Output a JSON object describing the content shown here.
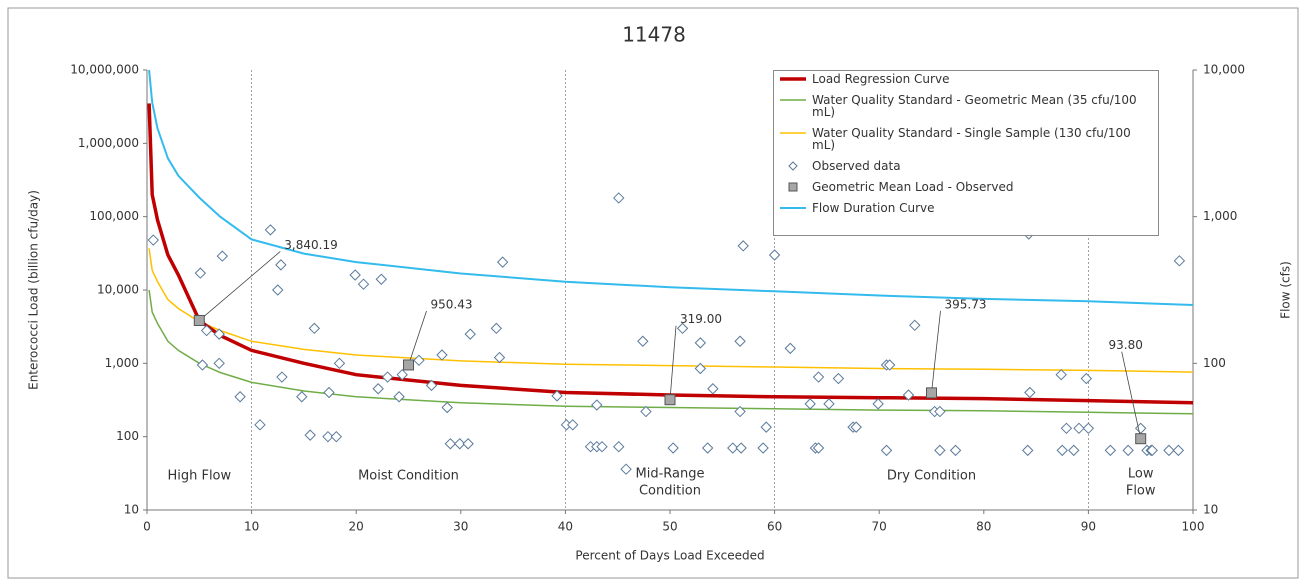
{
  "chart_data": {
    "type": "line",
    "title": "11478",
    "x_label": "Percent of Days Load Exceeded",
    "y_label": "Enterococci Load (billion cfu/day)",
    "y2_label": "Flow (cfs)",
    "xlim": [
      0,
      100
    ],
    "xticks": [
      0,
      10,
      20,
      30,
      40,
      50,
      60,
      70,
      80,
      90,
      100
    ],
    "ylim": [
      10,
      10000000
    ],
    "yticks": [
      10,
      100,
      {
        "value": 1000,
        "label": "1,000"
      },
      {
        "value": 10000,
        "label": "10,000"
      },
      {
        "value": 100000,
        "label": "100,000"
      },
      {
        "value": 1000000,
        "label": "1,000,000"
      },
      {
        "value": 10000000,
        "label": "10,000,000"
      }
    ],
    "y2lim": [
      10,
      10000
    ],
    "y2ticks": [
      10,
      100,
      {
        "value": 1000,
        "label": "1,000"
      },
      {
        "value": 10000,
        "label": "10,000"
      }
    ],
    "log_scale": true,
    "zone_boundaries": [
      10,
      40,
      60,
      90
    ],
    "zones": [
      [
        "High Flow"
      ],
      [
        "Moist Condition"
      ],
      [
        "Mid-Range",
        "Condition"
      ],
      [
        "Dry Condition"
      ],
      [
        "Low",
        "Flow"
      ]
    ],
    "legend": "upper right",
    "series": [
      {
        "name": "Load Regression Curve",
        "kind": "line",
        "color": "#c00000",
        "width": 3.5,
        "x": [
          0.2,
          0.5,
          1,
          2,
          3,
          5,
          7,
          10,
          15,
          20,
          30,
          40,
          50,
          60,
          70,
          80,
          90,
          100
        ],
        "values": [
          3500000,
          200000,
          90000,
          30000,
          16000,
          3840,
          2400,
          1500,
          1000,
          700,
          500,
          400,
          370,
          350,
          340,
          330,
          310,
          290
        ]
      },
      {
        "name": "Water Quality Standard - Geometric Mean (35 cfu/100 mL)",
        "kind": "line",
        "color": "#70ad47",
        "width": 1.5,
        "x": [
          0.2,
          0.5,
          1,
          2,
          3,
          5,
          7,
          10,
          15,
          20,
          30,
          40,
          50,
          60,
          70,
          80,
          90,
          100
        ],
        "values": [
          10000,
          5000,
          3500,
          2000,
          1500,
          1000,
          750,
          550,
          420,
          350,
          290,
          260,
          250,
          240,
          230,
          225,
          215,
          205
        ]
      },
      {
        "name": "Water Quality Standard - Single Sample (130 cfu/100 mL)",
        "kind": "line",
        "color": "#ffc000",
        "width": 1.5,
        "x": [
          0.2,
          0.5,
          1,
          2,
          3,
          5,
          7,
          10,
          15,
          20,
          30,
          40,
          50,
          60,
          70,
          80,
          90,
          100
        ],
        "values": [
          37000,
          18500,
          13000,
          7400,
          5600,
          3700,
          2800,
          2000,
          1550,
          1300,
          1080,
          970,
          930,
          890,
          850,
          830,
          800,
          760
        ]
      },
      {
        "name": "Observed data",
        "kind": "scatter",
        "color": "#5a7a9a",
        "x": [
          0.6,
          5.1,
          7.2,
          11.8,
          12.8,
          12.5,
          5.3,
          5.7,
          6.9,
          6.9,
          8.9,
          10.8,
          12.9,
          14.8,
          15.6,
          16,
          17.3,
          17.4,
          18.1,
          18.4,
          19.9,
          20.7,
          22.4,
          22.1,
          23,
          24.1,
          24.4,
          26,
          27.2,
          28.2,
          28.7,
          29,
          29.9,
          30.7,
          30.9,
          33.4,
          33.7,
          34,
          39.2,
          40.1,
          40.7,
          42.4,
          43,
          43.5,
          43,
          45.1,
          45.1,
          45.8,
          47.4,
          47.7,
          50.3,
          51.2,
          52.9,
          52.9,
          53.6,
          54.1,
          56,
          56.7,
          56.7,
          56.8,
          57,
          58.9,
          59.2,
          60,
          61.5,
          63.4,
          63.9,
          64.2,
          64.2,
          65.2,
          66.1,
          67.5,
          67.8,
          69.9,
          70.7,
          71,
          70.7,
          72.8,
          73.4,
          75.3,
          75.8,
          75.8,
          77.3,
          84.3,
          84.4,
          84.2,
          87.4,
          87.5,
          87.9,
          88.6,
          89.1,
          90,
          89.8,
          92.1,
          93.8,
          95,
          95.6,
          96,
          96.1,
          97.7,
          98.6,
          98.7
        ],
        "values": [
          48000,
          17000,
          29000,
          66000,
          22000,
          10000,
          950,
          2800,
          2500,
          1000,
          350,
          145,
          650,
          350,
          105,
          3000,
          100,
          400,
          100,
          1000,
          16000,
          12000,
          14000,
          450,
          650,
          350,
          700,
          1100,
          500,
          1300,
          250,
          80,
          80,
          80,
          2500,
          3000,
          1200,
          24000,
          360,
          145,
          145,
          73,
          73,
          73,
          270,
          73,
          180000,
          36,
          2000,
          220,
          70,
          3000,
          1900,
          850,
          70,
          450,
          70,
          2000,
          220,
          70,
          40000,
          70,
          135,
          30000,
          1600,
          280,
          70,
          650,
          70,
          280,
          620,
          135,
          135,
          280,
          950,
          950,
          65,
          370,
          3300,
          220,
          220,
          65,
          65,
          58000,
          400,
          65,
          700,
          65,
          130,
          65,
          130,
          130,
          620,
          65,
          65,
          130,
          65,
          65,
          65,
          65,
          65,
          25000
        ]
      },
      {
        "name": "Geometric Mean Load - Observed",
        "kind": "marker",
        "color": "#a6a6a6",
        "x": [
          5,
          25,
          50,
          75,
          95
        ],
        "values": [
          3840.19,
          950.43,
          319,
          395.73,
          93.8
        ],
        "value_labels": [
          "3,840.19",
          "950.43",
          "319.00",
          "395.73",
          "93.80"
        ]
      },
      {
        "name": "Flow Duration Curve",
        "kind": "line",
        "axis": "y2",
        "color": "#33bbee",
        "width": 2,
        "x": [
          0.2,
          0.5,
          1,
          2,
          3,
          5,
          7,
          10,
          15,
          20,
          30,
          40,
          50,
          60,
          70,
          80,
          90,
          100
        ],
        "values": [
          10000,
          6000,
          4000,
          2500,
          1900,
          1350,
          1000,
          700,
          560,
          490,
          410,
          360,
          330,
          310,
          290,
          275,
          265,
          250
        ]
      }
    ]
  }
}
